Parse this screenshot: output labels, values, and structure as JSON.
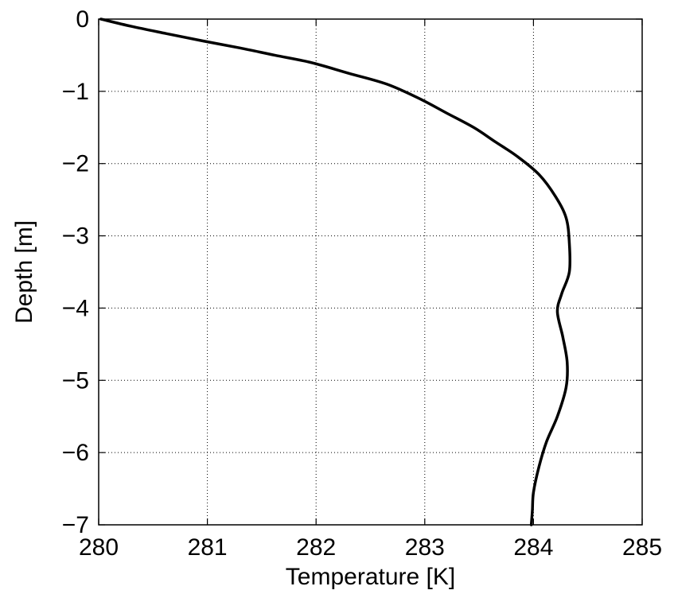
{
  "chart_data": {
    "type": "line",
    "title": "",
    "xlabel": "Temperature [K]",
    "ylabel": "Depth [m]",
    "xlim": [
      280,
      285
    ],
    "ylim": [
      -7,
      0
    ],
    "xticks": [
      280,
      281,
      282,
      283,
      284,
      285
    ],
    "yticks": [
      0,
      -1,
      -2,
      -3,
      -4,
      -5,
      -6,
      -7
    ],
    "xtick_labels": [
      "280",
      "281",
      "282",
      "283",
      "284",
      "285"
    ],
    "ytick_labels": [
      "0",
      "−1",
      "−2",
      "−3",
      "−4",
      "−5",
      "−6",
      "−7"
    ],
    "grid": true,
    "line_color": "#000000",
    "series": [
      {
        "x": [
          280.02,
          280.3,
          280.62,
          280.95,
          281.3,
          281.62,
          281.95,
          282.3,
          282.65,
          282.95,
          283.2,
          283.45,
          283.65,
          283.85,
          284.05,
          284.2,
          284.3,
          284.33,
          284.33,
          284.26,
          284.22,
          284.27,
          284.31,
          284.3,
          284.22,
          284.12,
          284.05,
          284.0,
          283.99,
          283.98
        ],
        "y": [
          0,
          -0.1,
          -0.2,
          -0.3,
          -0.4,
          -0.5,
          -0.6,
          -0.75,
          -0.9,
          -1.1,
          -1.3,
          -1.5,
          -1.7,
          -1.9,
          -2.15,
          -2.45,
          -2.75,
          -3.1,
          -3.5,
          -3.8,
          -4.05,
          -4.4,
          -4.75,
          -5.1,
          -5.5,
          -5.85,
          -6.2,
          -6.55,
          -6.8,
          -7.0
        ]
      }
    ]
  }
}
